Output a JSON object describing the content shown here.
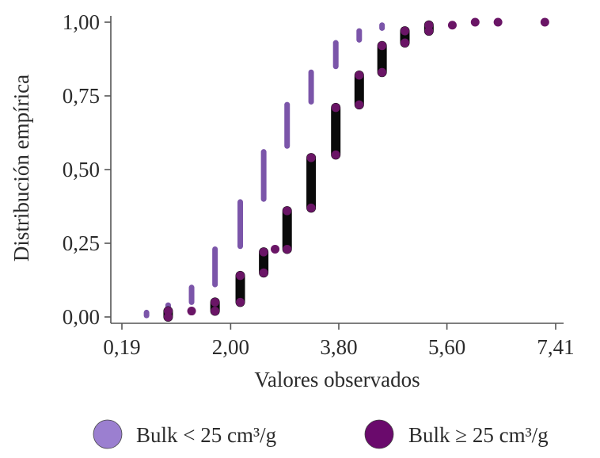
{
  "chart_data": {
    "type": "scatter",
    "title": "",
    "xlabel": "Valores observados",
    "ylabel": "Distribución empírica",
    "xlim": [
      0.19,
      7.41
    ],
    "ylim": [
      0,
      1
    ],
    "x_ticks": [
      0.19,
      2.0,
      3.8,
      5.6,
      7.41
    ],
    "x_tick_labels": [
      "0,19",
      "2,00",
      "3,80",
      "5,60",
      "7,41"
    ],
    "y_ticks": [
      0,
      0.25,
      0.5,
      0.75,
      1
    ],
    "y_tick_labels": [
      "0,00",
      "0,25",
      "0,50",
      "0,75",
      "1,00"
    ],
    "grid": false,
    "legend_position": "bottom",
    "series": [
      {
        "name": "Bulk < 25 cm³/g",
        "color": "#7b55a9",
        "points": [
          {
            "x": 0.6,
            "y_low": 0.005,
            "y_high": 0.015
          },
          {
            "x": 0.96,
            "y_low": 0.01,
            "y_high": 0.04
          },
          {
            "x": 1.35,
            "y_low": 0.05,
            "y_high": 0.1
          },
          {
            "x": 1.74,
            "y_low": 0.11,
            "y_high": 0.23
          },
          {
            "x": 2.16,
            "y_low": 0.24,
            "y_high": 0.39
          },
          {
            "x": 2.55,
            "y_low": 0.4,
            "y_high": 0.56
          },
          {
            "x": 2.94,
            "y_low": 0.58,
            "y_high": 0.72
          },
          {
            "x": 3.34,
            "y_low": 0.73,
            "y_high": 0.83
          },
          {
            "x": 3.75,
            "y_low": 0.85,
            "y_high": 0.93
          },
          {
            "x": 4.14,
            "y_low": 0.94,
            "y_high": 0.97
          },
          {
            "x": 4.52,
            "y_low": 0.98,
            "y_high": 0.99
          }
        ]
      },
      {
        "name": "Bulk ≥ 25 cm³/g",
        "color": "#6a1566",
        "points": [
          {
            "x": 0.96,
            "y_low": 0.0,
            "y_high": 0.02
          },
          {
            "x": 1.35,
            "y_low": 0.02,
            "y_high": 0.02
          },
          {
            "x": 1.74,
            "y_low": 0.02,
            "y_high": 0.05
          },
          {
            "x": 2.16,
            "y_low": 0.05,
            "y_high": 0.14
          },
          {
            "x": 2.55,
            "y_low": 0.15,
            "y_high": 0.22
          },
          {
            "x": 2.74,
            "y_low": 0.23,
            "y_high": 0.23
          },
          {
            "x": 2.94,
            "y_low": 0.23,
            "y_high": 0.36
          },
          {
            "x": 3.34,
            "y_low": 0.37,
            "y_high": 0.54
          },
          {
            "x": 3.75,
            "y_low": 0.55,
            "y_high": 0.71
          },
          {
            "x": 4.14,
            "y_low": 0.72,
            "y_high": 0.82
          },
          {
            "x": 4.52,
            "y_low": 0.83,
            "y_high": 0.92
          },
          {
            "x": 4.9,
            "y_low": 0.93,
            "y_high": 0.97
          },
          {
            "x": 5.3,
            "y_low": 0.97,
            "y_high": 0.99
          },
          {
            "x": 5.69,
            "y_low": 0.99,
            "y_high": 0.99
          },
          {
            "x": 6.07,
            "y_low": 1.0,
            "y_high": 1.0
          },
          {
            "x": 6.45,
            "y_low": 1.0,
            "y_high": 1.0
          },
          {
            "x": 7.23,
            "y_low": 1.0,
            "y_high": 1.0
          }
        ]
      }
    ],
    "legend_entries": [
      {
        "label": "Bulk < 25 cm³/g",
        "color": "#9b7fd0"
      },
      {
        "label": "Bulk ≥ 25 cm³/g",
        "color": "#6a0a6c"
      }
    ]
  }
}
